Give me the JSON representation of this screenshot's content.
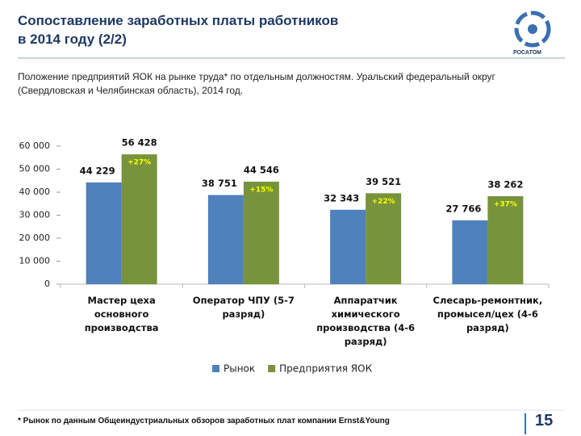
{
  "header": {
    "title": "Сопоставление заработных платы работников\nв 2014 году (2/2)",
    "logo_text": "РОСАТОМ"
  },
  "subtitle": "Положение предприятий ЯОК на рынке труда* по отдельным должностям. Уральский федеральный округ (Свердловская и Челябинская область), 2014 год.",
  "chart_data": {
    "type": "bar",
    "categories": [
      "Мастер цеха основного\nпроизводства",
      "Оператор ЧПУ (5-7\nразряд)",
      "Аппаратчик\nхимического\nпроизводства (4-6\nразряд)",
      "Слесарь-ремонтник,\nпромысел/цех (4-6\nразряд)"
    ],
    "series": [
      {
        "name": "Рынок",
        "color": "#4f81bd",
        "values": [
          44229,
          38751,
          32343,
          27766
        ],
        "value_labels": [
          "44 229",
          "38 751",
          "32 343",
          "27 766"
        ]
      },
      {
        "name": "Предприятия ЯОК",
        "color": "#77933c",
        "values": [
          56428,
          44546,
          39521,
          38262
        ],
        "value_labels": [
          "56 428",
          "44 546",
          "39 521",
          "38 262"
        ]
      }
    ],
    "annotations": [
      "+27%",
      "+15%",
      "+22%",
      "+37%"
    ],
    "ylim": [
      0,
      60000
    ],
    "yticks": [
      0,
      {
        "value": 10000,
        "label": "10 000"
      },
      {
        "value": 20000,
        "label": "20 000"
      },
      {
        "value": 30000,
        "label": "30 000"
      },
      {
        "value": 40000,
        "label": "40 000"
      },
      {
        "value": 50000,
        "label": "50 000"
      },
      {
        "value": 60000,
        "label": "60 000"
      }
    ],
    "legend": "bottom"
  },
  "footer": {
    "note": "* Рынок по данным Общеиндустриальных обзоров заработных плат компании Ernst&Young",
    "page": "15"
  }
}
